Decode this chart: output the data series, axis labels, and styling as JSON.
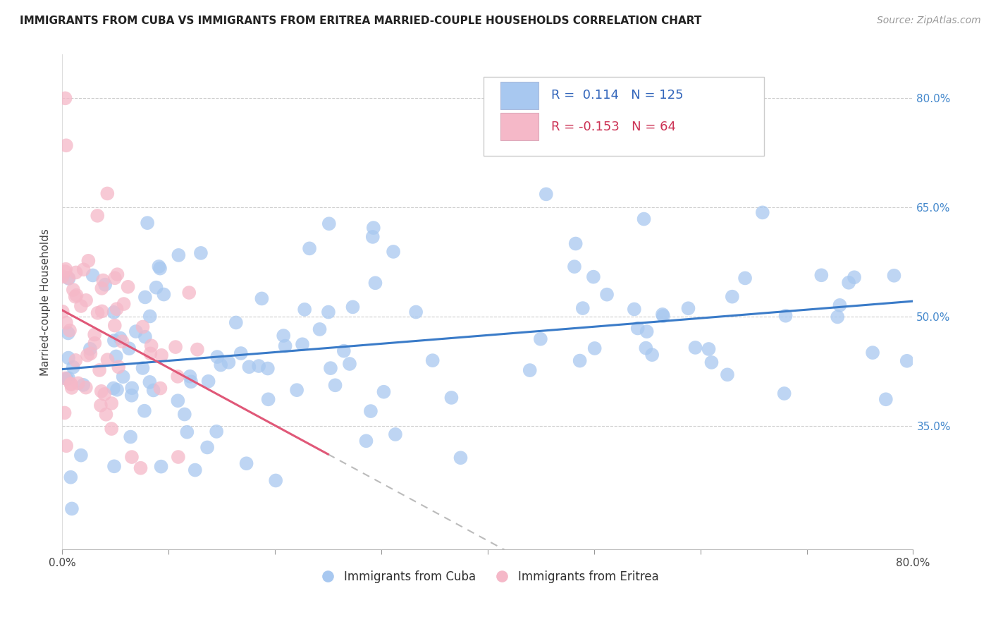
{
  "title": "IMMIGRANTS FROM CUBA VS IMMIGRANTS FROM ERITREA MARRIED-COUPLE HOUSEHOLDS CORRELATION CHART",
  "source": "Source: ZipAtlas.com",
  "ylabel": "Married-couple Households",
  "legend_label_cuba": "Immigrants from Cuba",
  "legend_label_eritrea": "Immigrants from Eritrea",
  "cuba_color": "#a8c8f0",
  "eritrea_color": "#f5b8c8",
  "cuba_line_color": "#3a7bc8",
  "eritrea_line_color": "#e05878",
  "R_cuba": 0.114,
  "N_cuba": 125,
  "R_eritrea": -0.153,
  "N_eritrea": 64,
  "xlim": [
    0.0,
    0.8
  ],
  "ylim": [
    0.18,
    0.86
  ],
  "yticks": [
    0.35,
    0.5,
    0.65,
    0.8
  ],
  "ytick_labels": [
    "35.0%",
    "50.0%",
    "65.0%",
    "80.0%"
  ],
  "xtick_minor": [
    0.0,
    0.1,
    0.2,
    0.3,
    0.4,
    0.5,
    0.6,
    0.7,
    0.8
  ],
  "grid_color": "#cccccc",
  "title_fontsize": 11,
  "source_fontsize": 10,
  "axis_label_fontsize": 11,
  "tick_label_fontsize": 11
}
